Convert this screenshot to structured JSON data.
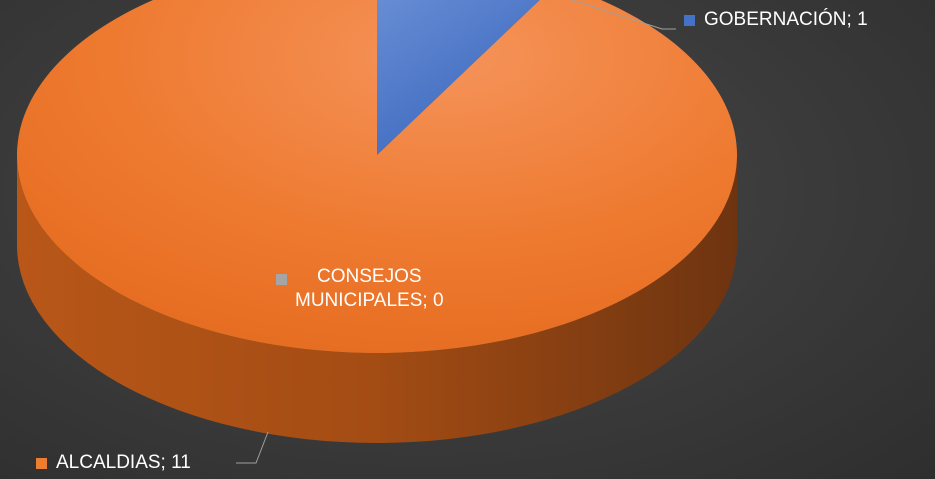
{
  "chart_data": {
    "type": "pie",
    "style": "3d",
    "categories": [
      "GOBERNACIÓN",
      "CONSEJOS MUNICIPALES",
      "ALCALDIAS"
    ],
    "values": [
      1,
      0,
      11
    ],
    "colors": [
      "#4472c4",
      "#a5a5a5",
      "#ed7d31"
    ],
    "data_labels": {
      "gobernacion": "GOBERNACIÓN; 1",
      "consejos_line1": "CONSEJOS",
      "consejos_line2": "MUNICIPALES; 0",
      "alcaldias": "ALCALDIAS; 11"
    },
    "title": "",
    "legend": "none"
  }
}
